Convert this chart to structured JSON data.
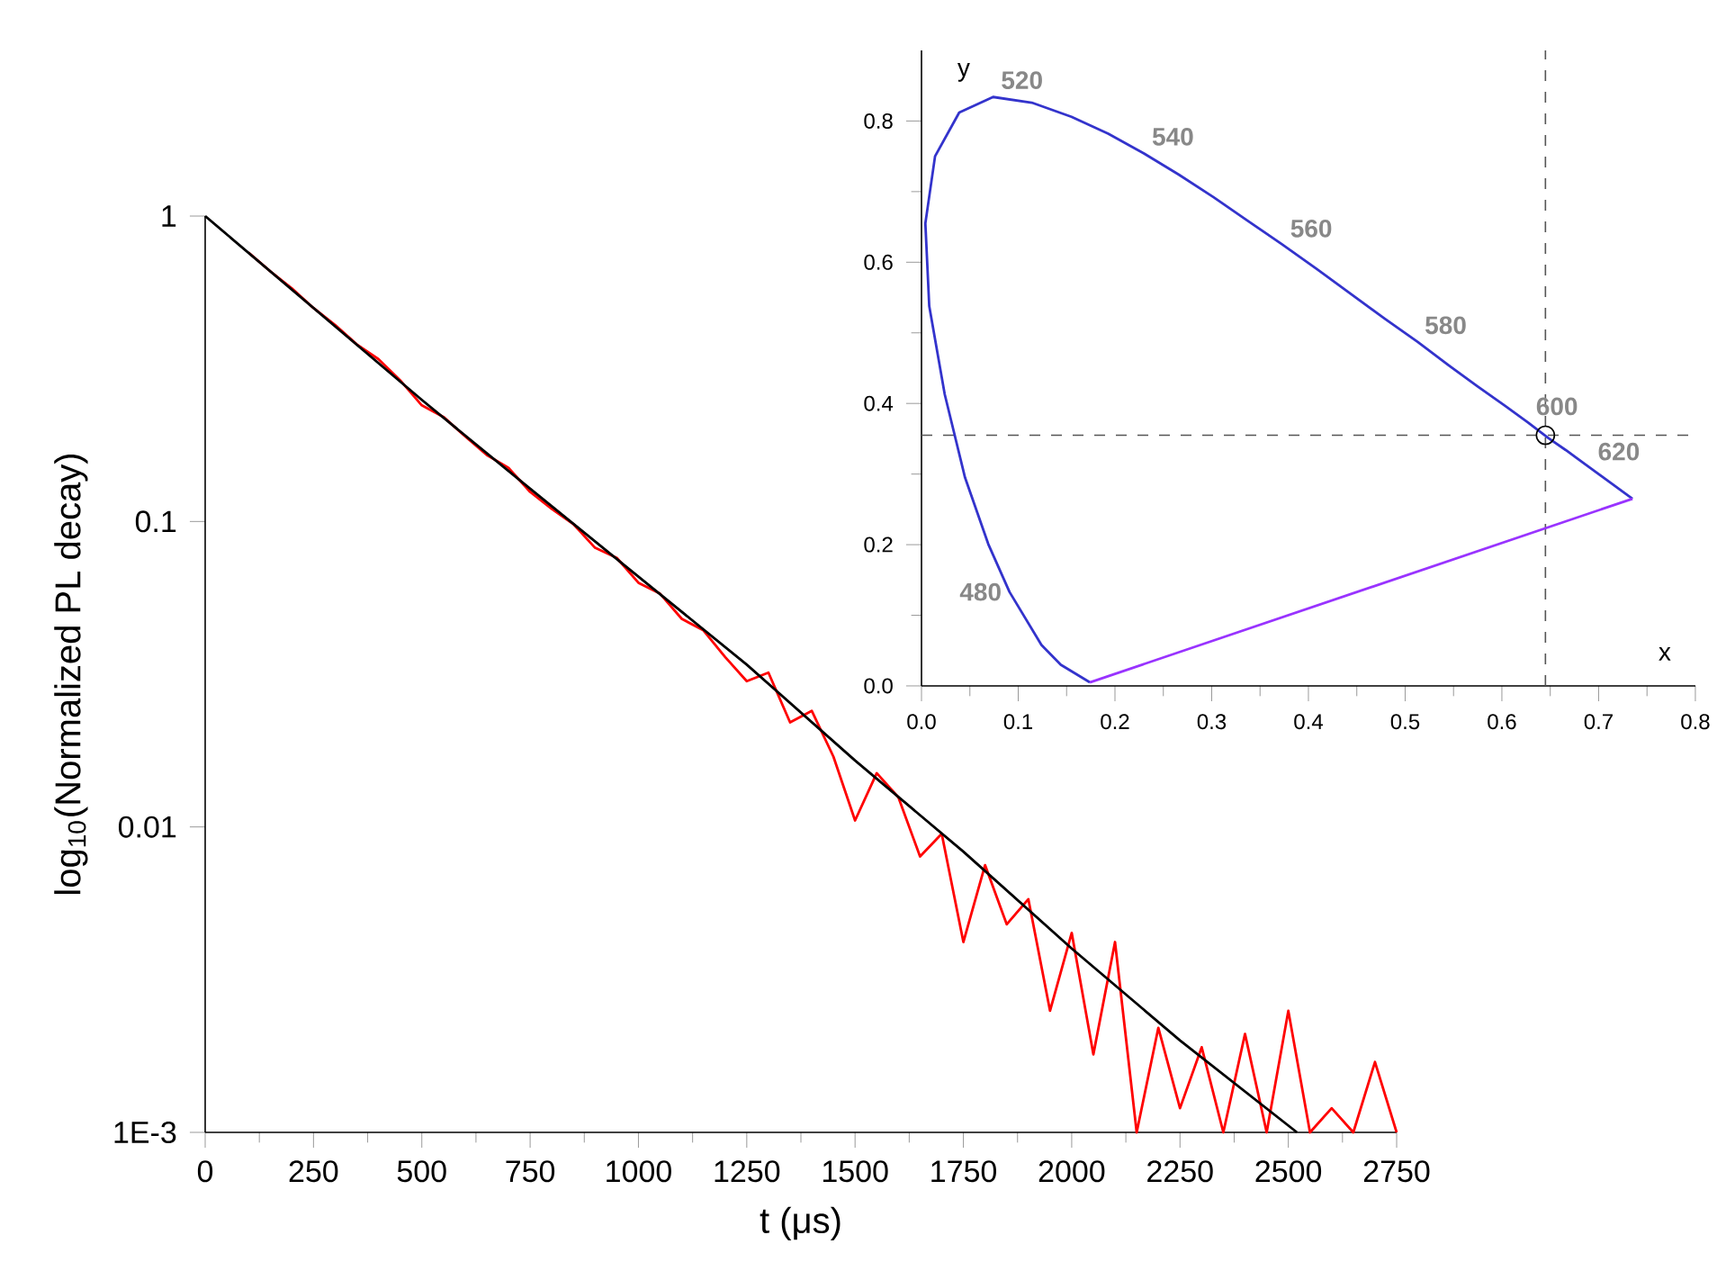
{
  "chart_data": [
    {
      "type": "line",
      "xlabel": "t (μs)",
      "ylabel": "log$_{10}$(Normalized PL decay)",
      "log": "y",
      "xlim": [
        0,
        2750
      ],
      "xticks": [
        0,
        250,
        500,
        750,
        1000,
        1250,
        1500,
        1750,
        2000,
        2250,
        2500,
        2750
      ],
      "ylim": [
        0.001,
        1
      ],
      "yticks": [
        {
          "value": 1,
          "label": "1"
        },
        {
          "value": 0.1,
          "label": "0.1"
        },
        {
          "value": 0.01,
          "label": "0.01"
        },
        {
          "value": 0.001,
          "label": "1E-3"
        }
      ],
      "series": [
        {
          "color": "#ff0000",
          "x": [
            100,
            150,
            200,
            250,
            300,
            350,
            400,
            450,
            500,
            550,
            600,
            650,
            700,
            750,
            800,
            850,
            900,
            950,
            1000,
            1050,
            1100,
            1150,
            1200,
            1250,
            1300,
            1350,
            1400,
            1450,
            1500,
            1550,
            1600,
            1650,
            1700,
            1750,
            1800,
            1850,
            1900,
            1950,
            2000,
            2050,
            2100,
            2150,
            2200,
            2250,
            2300,
            2350,
            2400,
            2450,
            2500,
            2550,
            2600,
            2650,
            2700,
            2750
          ],
          "values": [
            0.76,
            0.66,
            0.58,
            0.5,
            0.44,
            0.38,
            0.34,
            0.29,
            0.24,
            0.22,
            0.19,
            0.165,
            0.15,
            0.125,
            0.11,
            0.098,
            0.082,
            0.076,
            0.063,
            0.058,
            0.048,
            0.044,
            0.036,
            0.03,
            0.032,
            0.022,
            0.024,
            0.017,
            0.0105,
            0.015,
            0.0125,
            0.008,
            0.0095,
            0.0042,
            0.0075,
            0.0048,
            0.0058,
            0.0025,
            0.0045,
            0.0018,
            0.0042,
            0.001,
            0.0022,
            0.0012,
            0.0019,
            0.001,
            0.0021,
            0.001,
            0.0025,
            0.001,
            0.0012,
            0.001,
            0.0017,
            0.001
          ]
        },
        {
          "color": "#000000",
          "x": [
            0,
            250,
            500,
            750,
            1000,
            1250,
            1500,
            1750,
            2000,
            2250,
            2520
          ],
          "values": [
            1.0,
            0.5,
            0.25,
            0.128,
            0.066,
            0.034,
            0.0165,
            0.0083,
            0.004,
            0.002,
            0.001
          ]
        }
      ]
    },
    {
      "type": "line",
      "xlabel": "x",
      "ylabel": "y",
      "xlim": [
        0,
        0.8
      ],
      "xticks": [
        {
          "value": 0,
          "label": "0.0"
        },
        0.1,
        0.2,
        0.3,
        0.4,
        0.5,
        0.6,
        0.7,
        0.8
      ],
      "ylim": [
        0,
        0.9
      ],
      "yticks": [
        {
          "value": 0,
          "label": "0.0"
        },
        0.2,
        0.4,
        0.6,
        0.8
      ],
      "series": [
        {
          "color": "#3333cc",
          "x": [
            0.174,
            0.144,
            0.124,
            0.091,
            0.069,
            0.045,
            0.024,
            0.008,
            0.004,
            0.014,
            0.039,
            0.074,
            0.114,
            0.155,
            0.193,
            0.23,
            0.266,
            0.302,
            0.337,
            0.373,
            0.409,
            0.444,
            0.479,
            0.513,
            0.545,
            0.575,
            0.603,
            0.627,
            0.648,
            0.666,
            0.692,
            0.714,
            0.735
          ],
          "values": [
            0.005,
            0.03,
            0.058,
            0.133,
            0.201,
            0.295,
            0.413,
            0.538,
            0.655,
            0.75,
            0.812,
            0.834,
            0.826,
            0.806,
            0.782,
            0.754,
            0.724,
            0.692,
            0.659,
            0.625,
            0.59,
            0.555,
            0.52,
            0.487,
            0.454,
            0.424,
            0.397,
            0.373,
            0.351,
            0.334,
            0.308,
            0.286,
            0.265
          ]
        },
        {
          "color": "#9933ff",
          "x": [
            0.174,
            0.735
          ],
          "values": [
            0.005,
            0.265
          ]
        },
        {
          "type": "scatter",
          "marker": "circle",
          "color": "#000000",
          "x": [
            0.645
          ],
          "values": [
            0.355
          ]
        }
      ],
      "ref_lines": [
        {
          "axis": "x",
          "value": 0.645,
          "color": "#555555",
          "line_style": "dashed"
        },
        {
          "axis": "y",
          "value": 0.355,
          "color": "#555555",
          "line_style": "dashed"
        }
      ],
      "annotations": [
        {
          "text": "520",
          "x": 0.074,
          "y": 0.834
        },
        {
          "text": "540",
          "x": 0.23,
          "y": 0.754
        },
        {
          "text": "560",
          "x": 0.373,
          "y": 0.624
        },
        {
          "text": "580",
          "x": 0.512,
          "y": 0.487
        },
        {
          "text": "600",
          "x": 0.627,
          "y": 0.372
        },
        {
          "text": "620",
          "x": 0.691,
          "y": 0.308
        },
        {
          "text": "480",
          "x": 0.091,
          "y": 0.133
        }
      ]
    }
  ]
}
